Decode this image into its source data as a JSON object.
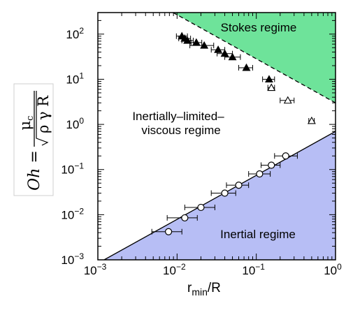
{
  "chart_data": {
    "type": "scatter",
    "xscale": "log",
    "yscale": "log",
    "xlim": [
      0.001,
      1
    ],
    "ylim": [
      0.001,
      300
    ],
    "x_ticks": [
      {
        "value": 0.001,
        "base": "10",
        "exp": "−3"
      },
      {
        "value": 0.01,
        "base": "10",
        "exp": "−2"
      },
      {
        "value": 0.1,
        "base": "10",
        "exp": "−1"
      },
      {
        "value": 1,
        "base": "10",
        "exp": "0"
      }
    ],
    "y_ticks": [
      {
        "value": 0.001,
        "base": "10",
        "exp": "−3"
      },
      {
        "value": 0.01,
        "base": "10",
        "exp": "−2"
      },
      {
        "value": 0.1,
        "base": "10",
        "exp": "−1"
      },
      {
        "value": 1,
        "base": "10",
        "exp": "0"
      },
      {
        "value": 10,
        "base": "10",
        "exp": "1"
      },
      {
        "value": 100,
        "base": "10",
        "exp": "2"
      }
    ],
    "xlabel": {
      "main": "r",
      "sub": "min",
      "rest": "/R"
    },
    "ylabel": {
      "lhs": "Oh =",
      "num": "μ",
      "num_sub": "c",
      "den": "ρ γ R"
    },
    "regions": [
      {
        "label": "Stokes regime",
        "color": "#6ee39a",
        "boundary": "dashed",
        "line": [
          [
            0.0089,
            300
          ],
          [
            1,
            3
          ]
        ]
      },
      {
        "label": "Inertial regime",
        "color": "#b7bef5",
        "boundary": "solid",
        "line": [
          [
            0.0012,
            0.001
          ],
          [
            1,
            0.7
          ]
        ]
      }
    ],
    "middle_label": [
      "Inertially–limited–",
      "viscous regime"
    ],
    "series": [
      {
        "marker": "filled-triangle",
        "points": [
          {
            "x": 0.0115,
            "y": 90,
            "xerr": [
              0.0098,
              0.0135
            ]
          },
          {
            "x": 0.0125,
            "y": 80,
            "xerr": [
              0.0105,
              0.0148
            ]
          },
          {
            "x": 0.0135,
            "y": 72,
            "xerr": [
              0.0115,
              0.016
            ]
          },
          {
            "x": 0.0175,
            "y": 65,
            "xerr": [
              0.015,
              0.0205
            ]
          },
          {
            "x": 0.022,
            "y": 56,
            "xerr": [
              0.0145,
              0.029
            ]
          },
          {
            "x": 0.033,
            "y": 45,
            "xerr": [
              0.027,
              0.04
            ]
          },
          {
            "x": 0.04,
            "y": 37,
            "xerr": [
              0.032,
              0.05
            ]
          },
          {
            "x": 0.05,
            "y": 31,
            "xerr": [
              0.04,
              0.063
            ]
          },
          {
            "x": 0.075,
            "y": 18,
            "xerr": [
              0.06,
              0.09
            ]
          },
          {
            "x": 0.145,
            "y": 10,
            "xerr": [
              0.12,
              0.17
            ]
          }
        ]
      },
      {
        "marker": "open-triangle",
        "points": [
          {
            "x": 0.155,
            "y": 6.5,
            "xerr": [
              0.14,
              0.17
            ]
          },
          {
            "x": 0.25,
            "y": 3.4,
            "xerr": [
              0.2,
              0.3
            ]
          },
          {
            "x": 0.5,
            "y": 1.2,
            "xerr": [
              0.46,
              0.54
            ]
          }
        ]
      },
      {
        "marker": "open-circle",
        "points": [
          {
            "x": 0.0078,
            "y": 0.0042,
            "xerr": [
              0.0048,
              0.0115
            ]
          },
          {
            "x": 0.0125,
            "y": 0.0085,
            "xerr": [
              0.0075,
              0.018
            ]
          },
          {
            "x": 0.02,
            "y": 0.0145,
            "xerr": [
              0.0125,
              0.03
            ]
          },
          {
            "x": 0.04,
            "y": 0.03,
            "xerr": [
              0.027,
              0.055
            ]
          },
          {
            "x": 0.06,
            "y": 0.045,
            "xerr": [
              0.042,
              0.08
            ]
          },
          {
            "x": 0.11,
            "y": 0.08,
            "xerr": [
              0.08,
              0.15
            ]
          },
          {
            "x": 0.155,
            "y": 0.125,
            "xerr": [
              0.115,
              0.2
            ]
          },
          {
            "x": 0.235,
            "y": 0.2,
            "xerr": [
              0.17,
              0.33
            ]
          }
        ]
      }
    ]
  }
}
